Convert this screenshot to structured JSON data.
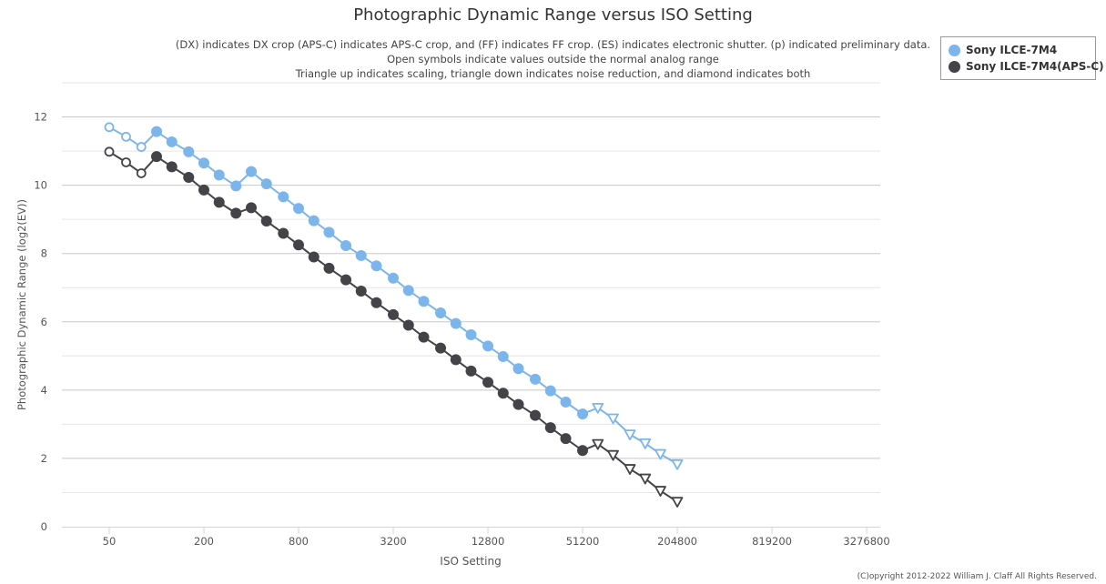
{
  "chart_data": {
    "type": "line",
    "title": "Photographic Dynamic Range versus ISO Setting",
    "subtitle_lines": [
      "(DX) indicates DX crop (APS-C) indicates APS-C crop, and (FF) indicates FF crop. (ES) indicates electronic shutter. (p) indicated preliminary data.",
      "Open symbols indicate values outside the normal analog range",
      "Triangle up indicates scaling, triangle down indicates noise reduction, and diamond indicates both"
    ],
    "xlabel": "ISO Setting",
    "ylabel": "Photographic Dynamic Range (log2(EV))",
    "x_scale": "log2",
    "xlim": [
      25,
      4000000
    ],
    "ylim": [
      0,
      13
    ],
    "x_ticks": [
      "50",
      "200",
      "800",
      "3200",
      "12800",
      "51200",
      "204800",
      "819200",
      "3276800"
    ],
    "y_ticks": [
      "0",
      "2",
      "4",
      "6",
      "8",
      "10",
      "12"
    ],
    "grid": true,
    "legend_position": "top-right",
    "series": [
      {
        "name": "Sony ILCE-7M4",
        "color": "#7cb5ec",
        "points": [
          {
            "x": 50,
            "y": 11.7,
            "marker": "open-circle"
          },
          {
            "x": 64,
            "y": 11.42,
            "marker": "open-circle"
          },
          {
            "x": 80,
            "y": 11.12,
            "marker": "open-circle"
          },
          {
            "x": 100,
            "y": 11.57,
            "marker": "circle"
          },
          {
            "x": 125,
            "y": 11.27,
            "marker": "circle"
          },
          {
            "x": 160,
            "y": 10.98,
            "marker": "circle"
          },
          {
            "x": 200,
            "y": 10.65,
            "marker": "circle"
          },
          {
            "x": 250,
            "y": 10.3,
            "marker": "circle"
          },
          {
            "x": 320,
            "y": 9.98,
            "marker": "circle"
          },
          {
            "x": 400,
            "y": 10.4,
            "marker": "circle"
          },
          {
            "x": 500,
            "y": 10.04,
            "marker": "circle"
          },
          {
            "x": 640,
            "y": 9.66,
            "marker": "circle"
          },
          {
            "x": 800,
            "y": 9.32,
            "marker": "circle"
          },
          {
            "x": 1000,
            "y": 8.96,
            "marker": "circle"
          },
          {
            "x": 1250,
            "y": 8.62,
            "marker": "circle"
          },
          {
            "x": 1600,
            "y": 8.23,
            "marker": "circle"
          },
          {
            "x": 2000,
            "y": 7.94,
            "marker": "circle"
          },
          {
            "x": 2500,
            "y": 7.64,
            "marker": "circle"
          },
          {
            "x": 3200,
            "y": 7.28,
            "marker": "circle"
          },
          {
            "x": 4000,
            "y": 6.92,
            "marker": "circle"
          },
          {
            "x": 5000,
            "y": 6.6,
            "marker": "circle"
          },
          {
            "x": 6400,
            "y": 6.26,
            "marker": "circle"
          },
          {
            "x": 8000,
            "y": 5.95,
            "marker": "circle"
          },
          {
            "x": 10000,
            "y": 5.62,
            "marker": "circle"
          },
          {
            "x": 12800,
            "y": 5.29,
            "marker": "circle"
          },
          {
            "x": 16000,
            "y": 4.98,
            "marker": "circle"
          },
          {
            "x": 20000,
            "y": 4.63,
            "marker": "circle"
          },
          {
            "x": 25600,
            "y": 4.32,
            "marker": "circle"
          },
          {
            "x": 32000,
            "y": 3.98,
            "marker": "circle"
          },
          {
            "x": 40000,
            "y": 3.65,
            "marker": "circle"
          },
          {
            "x": 51200,
            "y": 3.3,
            "marker": "circle"
          },
          {
            "x": 64000,
            "y": 3.48,
            "marker": "open-triangle-down"
          },
          {
            "x": 80000,
            "y": 3.17,
            "marker": "open-triangle-down"
          },
          {
            "x": 102400,
            "y": 2.7,
            "marker": "open-triangle-down"
          },
          {
            "x": 128000,
            "y": 2.44,
            "marker": "open-triangle-down"
          },
          {
            "x": 160000,
            "y": 2.13,
            "marker": "open-triangle-down"
          },
          {
            "x": 204800,
            "y": 1.83,
            "marker": "open-triangle-down"
          }
        ]
      },
      {
        "name": "Sony ILCE-7M4(APS-C)",
        "color": "#434348",
        "points": [
          {
            "x": 50,
            "y": 10.98,
            "marker": "open-circle"
          },
          {
            "x": 64,
            "y": 10.67,
            "marker": "open-circle"
          },
          {
            "x": 80,
            "y": 10.35,
            "marker": "open-circle"
          },
          {
            "x": 100,
            "y": 10.84,
            "marker": "circle"
          },
          {
            "x": 125,
            "y": 10.54,
            "marker": "circle"
          },
          {
            "x": 160,
            "y": 10.23,
            "marker": "circle"
          },
          {
            "x": 200,
            "y": 9.86,
            "marker": "circle"
          },
          {
            "x": 250,
            "y": 9.5,
            "marker": "circle"
          },
          {
            "x": 320,
            "y": 9.18,
            "marker": "circle"
          },
          {
            "x": 400,
            "y": 9.34,
            "marker": "circle"
          },
          {
            "x": 500,
            "y": 8.95,
            "marker": "circle"
          },
          {
            "x": 640,
            "y": 8.59,
            "marker": "circle"
          },
          {
            "x": 800,
            "y": 8.25,
            "marker": "circle"
          },
          {
            "x": 1000,
            "y": 7.9,
            "marker": "circle"
          },
          {
            "x": 1250,
            "y": 7.57,
            "marker": "circle"
          },
          {
            "x": 1600,
            "y": 7.23,
            "marker": "circle"
          },
          {
            "x": 2000,
            "y": 6.9,
            "marker": "circle"
          },
          {
            "x": 2500,
            "y": 6.56,
            "marker": "circle"
          },
          {
            "x": 3200,
            "y": 6.21,
            "marker": "circle"
          },
          {
            "x": 4000,
            "y": 5.9,
            "marker": "circle"
          },
          {
            "x": 5000,
            "y": 5.55,
            "marker": "circle"
          },
          {
            "x": 6400,
            "y": 5.23,
            "marker": "circle"
          },
          {
            "x": 8000,
            "y": 4.89,
            "marker": "circle"
          },
          {
            "x": 10000,
            "y": 4.56,
            "marker": "circle"
          },
          {
            "x": 12800,
            "y": 4.23,
            "marker": "circle"
          },
          {
            "x": 16000,
            "y": 3.91,
            "marker": "circle"
          },
          {
            "x": 20000,
            "y": 3.58,
            "marker": "circle"
          },
          {
            "x": 25600,
            "y": 3.26,
            "marker": "circle"
          },
          {
            "x": 32000,
            "y": 2.9,
            "marker": "circle"
          },
          {
            "x": 40000,
            "y": 2.58,
            "marker": "circle"
          },
          {
            "x": 51200,
            "y": 2.23,
            "marker": "circle"
          },
          {
            "x": 64000,
            "y": 2.42,
            "marker": "open-triangle-down"
          },
          {
            "x": 80000,
            "y": 2.1,
            "marker": "open-triangle-down"
          },
          {
            "x": 102400,
            "y": 1.69,
            "marker": "open-triangle-down"
          },
          {
            "x": 128000,
            "y": 1.41,
            "marker": "open-triangle-down"
          },
          {
            "x": 160000,
            "y": 1.05,
            "marker": "open-triangle-down"
          },
          {
            "x": 204800,
            "y": 0.73,
            "marker": "open-triangle-down"
          }
        ]
      }
    ]
  },
  "copyright": "(C)opyright 2012-2022 William J. Claff All Rights Reserved."
}
